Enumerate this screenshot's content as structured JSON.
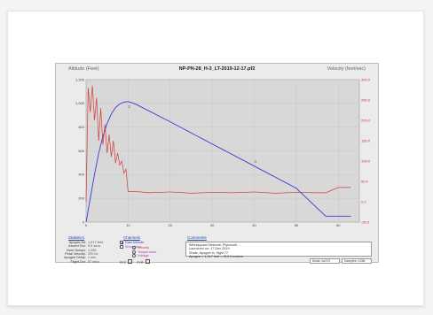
{
  "window": {
    "title": "NP-PN-28_H-3_LT-2019-12-17.pf2",
    "left_label": "Altitude (Feet)",
    "right_label": "Velocity (feet/sec)"
  },
  "chart_data": {
    "type": "line",
    "title": "NP-PN-28_H-3_LT-2019-12-17.pf2",
    "ylabel": "Altitude (Feet)",
    "y2label": "Velocity (feet/sec)",
    "xlim": [
      0,
      65
    ],
    "ylim": [
      0,
      1200
    ],
    "y2lim": [
      -50,
      300
    ],
    "x_ticks": [
      0,
      10,
      20,
      30,
      40,
      50,
      60
    ],
    "y_ticks": [
      0,
      200,
      400,
      600,
      800,
      1000,
      1200
    ],
    "y_tick_labels": [
      "0",
      "200",
      "400",
      "600",
      "800",
      "1,000",
      "1,200"
    ],
    "y2_ticks": [
      -50,
      0,
      50,
      100,
      150,
      200,
      250,
      300
    ],
    "grid": true,
    "series": [
      {
        "name": "Raw Altitude",
        "axis": "left",
        "color": "#3a3ad8",
        "x": [
          0,
          1,
          2,
          3,
          4,
          5,
          6,
          7,
          8,
          9,
          10,
          11,
          12,
          20,
          30,
          40,
          50,
          57,
          60,
          63
        ],
        "y": [
          0,
          200,
          400,
          580,
          720,
          830,
          910,
          965,
          995,
          1010,
          1015,
          1005,
          990,
          845,
          658,
          472,
          285,
          50,
          50,
          50
        ]
      },
      {
        "name": "Velocity",
        "axis": "right",
        "color": "#d63b3b",
        "x": [
          0,
          0.5,
          1,
          1.5,
          2,
          2.5,
          3,
          3.5,
          4,
          4.5,
          5,
          5.5,
          6,
          6.5,
          7,
          7.5,
          8,
          8.5,
          9,
          9.5,
          10,
          12,
          15,
          20,
          25,
          30,
          35,
          40,
          45,
          50,
          55,
          57,
          60,
          63
        ],
        "y": [
          0,
          280,
          220,
          285,
          200,
          255,
          150,
          230,
          140,
          190,
          120,
          165,
          110,
          150,
          95,
          120,
          90,
          100,
          70,
          80,
          25,
          25,
          22,
          24,
          21,
          23,
          22,
          24,
          21,
          23,
          22,
          22,
          35,
          35
        ]
      }
    ],
    "annotations": [
      {
        "text": "2",
        "x": 10,
        "y": 960
      },
      {
        "text": "4",
        "x": 40,
        "y": 500
      }
    ]
  },
  "statistics": {
    "title": "Statistics",
    "rows": [
      {
        "label": "Apogee Alt:",
        "value": "1,017 feet"
      },
      {
        "label": "Ascent Dur:",
        "value": "9.9 secs"
      },
      {
        "label": "Num Samps:",
        "value": "1,256"
      },
      {
        "label": "Peak Velocity:",
        "value": "290 f/s"
      },
      {
        "label": "Apogee Delay:",
        "value": "1 sec"
      },
      {
        "label": "Flight Dur:",
        "value": "57 secs"
      }
    ]
  },
  "channels": {
    "title": "Channels",
    "checks": [
      {
        "label": "Raw Altitude",
        "checked": true,
        "color": "#3a3ad8"
      },
      {
        "label": "Smoothed",
        "checked": false,
        "color": "#b044b0"
      }
    ],
    "radios": [
      {
        "label": "Velocity",
        "checked": true,
        "color": "#d63b3b"
      },
      {
        "label": "Temperature",
        "checked": false,
        "color": "#b044b0"
      },
      {
        "label": "Voltage",
        "checked": false,
        "color": "#b044b0"
      }
    ],
    "pfc_label": "PFC",
    "pyr_label": "PYR"
  },
  "comments": {
    "title": "Comments",
    "lines": [
      "Winnisquam Network, Plymouth, ...",
      "Launched on: 17 Dec 2019",
      "Shale, Apogee in, flight 77",
      "Apogee = 1,017 feet = 310.0 meters"
    ]
  },
  "footer": {
    "mode_label": "Mode: AUTO",
    "samples_label": "Samples: 1256"
  }
}
